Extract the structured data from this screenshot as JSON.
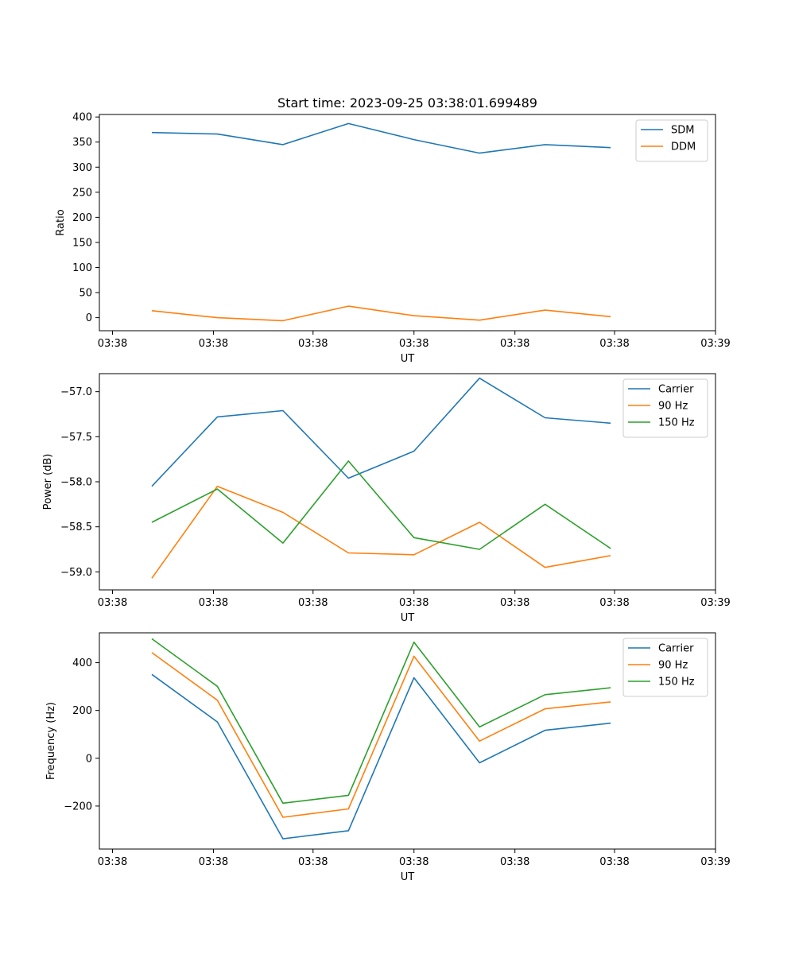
{
  "figure_title": "Start time: 2023-09-25 03:38:01.699489",
  "chart_data": [
    {
      "type": "line",
      "title": "Start time: 2023-09-25 03:38:01.699489",
      "xlabel": "UT",
      "ylabel": "Ratio",
      "xlim": [
        -0.4,
        4.3
      ],
      "ylim": [
        -26,
        405
      ],
      "x": [
        0,
        0.5,
        1,
        1.5,
        2,
        2.5,
        3,
        3.5
      ],
      "x_ticks": [
        {
          "value": -0.3,
          "label": "03:38"
        },
        {
          "value": 0.47,
          "label": "03:38"
        },
        {
          "value": 1.23,
          "label": "03:38"
        },
        {
          "value": 2.0,
          "label": "03:38"
        },
        {
          "value": 2.77,
          "label": "03:38"
        },
        {
          "value": 3.53,
          "label": "03:38"
        },
        {
          "value": 4.3,
          "label": "03:39"
        }
      ],
      "y_ticks": [
        {
          "value": 0,
          "label": "0"
        },
        {
          "value": 50,
          "label": "50"
        },
        {
          "value": 100,
          "label": "100"
        },
        {
          "value": 150,
          "label": "150"
        },
        {
          "value": 200,
          "label": "200"
        },
        {
          "value": 250,
          "label": "250"
        },
        {
          "value": 300,
          "label": "300"
        },
        {
          "value": 350,
          "label": "350"
        },
        {
          "value": 400,
          "label": "400"
        }
      ],
      "legend_position": "top-right",
      "series": [
        {
          "name": "SDM",
          "color": "#1f77b4",
          "values": [
            369,
            366,
            345,
            387,
            355,
            328,
            345,
            339
          ]
        },
        {
          "name": "DDM",
          "color": "#ff7f0e",
          "values": [
            14,
            0,
            -6,
            23,
            4,
            -5,
            15,
            2
          ]
        }
      ]
    },
    {
      "type": "line",
      "title": "",
      "xlabel": "UT",
      "ylabel": "Power (dB)",
      "xlim": [
        -0.4,
        4.3
      ],
      "ylim": [
        -59.2,
        -56.8
      ],
      "x": [
        0,
        0.5,
        1,
        1.5,
        2,
        2.5,
        3,
        3.5
      ],
      "x_ticks": [
        {
          "value": -0.3,
          "label": "03:38"
        },
        {
          "value": 0.47,
          "label": "03:38"
        },
        {
          "value": 1.23,
          "label": "03:38"
        },
        {
          "value": 2.0,
          "label": "03:38"
        },
        {
          "value": 2.77,
          "label": "03:38"
        },
        {
          "value": 3.53,
          "label": "03:38"
        },
        {
          "value": 4.3,
          "label": "03:39"
        }
      ],
      "y_ticks": [
        {
          "value": -59.0,
          "label": "−59.0"
        },
        {
          "value": -58.5,
          "label": "−58.5"
        },
        {
          "value": -58.0,
          "label": "−58.0"
        },
        {
          "value": -57.5,
          "label": "−57.5"
        },
        {
          "value": -57.0,
          "label": "−57.0"
        }
      ],
      "legend_position": "top-right",
      "series": [
        {
          "name": "Carrier",
          "color": "#1f77b4",
          "values": [
            -58.05,
            -57.28,
            -57.21,
            -57.96,
            -57.66,
            -56.85,
            -57.29,
            -57.35
          ]
        },
        {
          "name": "90 Hz",
          "color": "#ff7f0e",
          "values": [
            -59.07,
            -58.05,
            -58.34,
            -58.79,
            -58.81,
            -58.45,
            -58.95,
            -58.82
          ]
        },
        {
          "name": "150 Hz",
          "color": "#2ca02c",
          "values": [
            -58.45,
            -58.08,
            -58.68,
            -57.77,
            -58.62,
            -58.75,
            -58.25,
            -58.74
          ]
        }
      ]
    },
    {
      "type": "line",
      "title": "",
      "xlabel": "UT",
      "ylabel": "Frequency (Hz)",
      "xlim": [
        -0.4,
        4.3
      ],
      "ylim": [
        -380,
        525
      ],
      "x": [
        0,
        0.5,
        1,
        1.5,
        2,
        2.5,
        3,
        3.5
      ],
      "x_ticks": [
        {
          "value": -0.3,
          "label": "03:38"
        },
        {
          "value": 0.47,
          "label": "03:38"
        },
        {
          "value": 1.23,
          "label": "03:38"
        },
        {
          "value": 2.0,
          "label": "03:38"
        },
        {
          "value": 2.77,
          "label": "03:38"
        },
        {
          "value": 3.53,
          "label": "03:38"
        },
        {
          "value": 4.3,
          "label": "03:39"
        }
      ],
      "y_ticks": [
        {
          "value": -200,
          "label": "−200"
        },
        {
          "value": 0,
          "label": "0"
        },
        {
          "value": 200,
          "label": "200"
        },
        {
          "value": 400,
          "label": "400"
        }
      ],
      "legend_position": "top-right",
      "series": [
        {
          "name": "Carrier",
          "color": "#1f77b4",
          "values": [
            351,
            152,
            -337,
            -303,
            337,
            -19,
            117,
            147
          ]
        },
        {
          "name": "90 Hz",
          "color": "#ff7f0e",
          "values": [
            442,
            243,
            -247,
            -212,
            427,
            72,
            207,
            236
          ]
        },
        {
          "name": "150 Hz",
          "color": "#2ca02c",
          "values": [
            500,
            301,
            -188,
            -155,
            486,
            131,
            266,
            295
          ]
        }
      ]
    }
  ]
}
